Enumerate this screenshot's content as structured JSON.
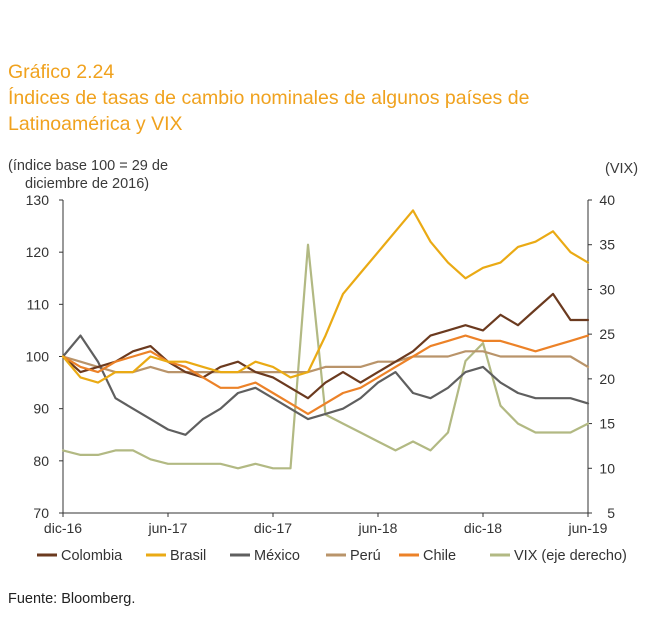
{
  "header": {
    "chart_number": "Gráfico 2.24",
    "title_line1": "Índices de tasas de cambio nominales de algunos países de",
    "title_line2": "Latinoamérica y VIX"
  },
  "units": {
    "left_line1": "(índice base 100 = 29 de",
    "left_line2": "diciembre de 2016)",
    "right": "(VIX)"
  },
  "source": "Fuente: Bloomberg.",
  "chart_data": {
    "type": "line",
    "x_ticks": [
      "dic-16",
      "jun-17",
      "dic-17",
      "jun-18",
      "dic-18",
      "jun-19"
    ],
    "left_axis": {
      "ticks": [
        70,
        80,
        90,
        100,
        110,
        120,
        130
      ],
      "ylim": [
        70,
        130
      ]
    },
    "right_axis": {
      "ticks": [
        5,
        10,
        15,
        20,
        25,
        30,
        35,
        40
      ],
      "ylim": [
        5,
        40
      ]
    },
    "x_range_months": [
      0,
      30
    ],
    "grid": false,
    "legend_position": "bottom",
    "series": [
      {
        "name": "Colombia",
        "color": "#6b3a1f",
        "axis": "left",
        "x": [
          0,
          1,
          2,
          3,
          4,
          5,
          6,
          7,
          8,
          9,
          10,
          11,
          12,
          13,
          14,
          15,
          16,
          17,
          18,
          19,
          20,
          21,
          22,
          23,
          24,
          25,
          26,
          27,
          28,
          29,
          30
        ],
        "values": [
          100,
          97,
          98,
          99,
          101,
          102,
          99,
          97,
          96,
          98,
          99,
          97,
          96,
          94,
          92,
          95,
          97,
          95,
          97,
          99,
          101,
          104,
          105,
          106,
          105,
          108,
          106,
          109,
          112,
          107,
          107
        ]
      },
      {
        "name": "Brasil",
        "color": "#eaaa14",
        "axis": "left",
        "x": [
          0,
          1,
          2,
          3,
          4,
          5,
          6,
          7,
          8,
          9,
          10,
          11,
          12,
          13,
          14,
          15,
          16,
          17,
          18,
          19,
          20,
          21,
          22,
          23,
          24,
          25,
          26,
          27,
          28,
          29,
          30
        ],
        "values": [
          100,
          96,
          95,
          97,
          97,
          100,
          99,
          99,
          98,
          97,
          97,
          99,
          98,
          96,
          97,
          104,
          112,
          116,
          120,
          124,
          128,
          122,
          118,
          115,
          117,
          118,
          121,
          122,
          124,
          120,
          118
        ]
      },
      {
        "name": "México",
        "color": "#5f5f5f",
        "axis": "left",
        "x": [
          0,
          1,
          2,
          3,
          4,
          5,
          6,
          7,
          8,
          9,
          10,
          11,
          12,
          13,
          14,
          15,
          16,
          17,
          18,
          19,
          20,
          21,
          22,
          23,
          24,
          25,
          26,
          27,
          28,
          29,
          30
        ],
        "values": [
          100,
          104,
          99,
          92,
          90,
          88,
          86,
          85,
          88,
          90,
          93,
          94,
          92,
          90,
          88,
          89,
          90,
          92,
          95,
          97,
          93,
          92,
          94,
          97,
          98,
          95,
          93,
          92,
          92,
          92,
          91
        ]
      },
      {
        "name": "Perú",
        "color": "#b9946a",
        "axis": "left",
        "x": [
          0,
          1,
          2,
          3,
          4,
          5,
          6,
          7,
          8,
          9,
          10,
          11,
          12,
          13,
          14,
          15,
          16,
          17,
          18,
          19,
          20,
          21,
          22,
          23,
          24,
          25,
          26,
          27,
          28,
          29,
          30
        ],
        "values": [
          100,
          99,
          98,
          97,
          97,
          98,
          97,
          97,
          97,
          97,
          97,
          97,
          97,
          97,
          97,
          98,
          98,
          98,
          99,
          99,
          100,
          100,
          100,
          101,
          101,
          100,
          100,
          100,
          100,
          100,
          98
        ]
      },
      {
        "name": "Chile",
        "color": "#ec8228",
        "axis": "left",
        "x": [
          0,
          1,
          2,
          3,
          4,
          5,
          6,
          7,
          8,
          9,
          10,
          11,
          12,
          13,
          14,
          15,
          16,
          17,
          18,
          19,
          20,
          21,
          22,
          23,
          24,
          25,
          26,
          27,
          28,
          29,
          30
        ],
        "values": [
          100,
          98,
          97,
          99,
          100,
          101,
          99,
          98,
          96,
          94,
          94,
          95,
          93,
          91,
          89,
          91,
          93,
          94,
          96,
          98,
          100,
          102,
          103,
          104,
          103,
          103,
          102,
          101,
          102,
          103,
          104
        ]
      },
      {
        "name": "VIX (eje derecho)",
        "color": "#b2b983",
        "axis": "right",
        "x": [
          0,
          1,
          2,
          3,
          4,
          5,
          6,
          7,
          8,
          9,
          10,
          11,
          12,
          13,
          14,
          15,
          16,
          17,
          18,
          19,
          20,
          21,
          22,
          23,
          24,
          25,
          26,
          27,
          28,
          29,
          30
        ],
        "values": [
          12,
          11.5,
          11.5,
          12,
          12,
          11,
          10.5,
          10.5,
          10.5,
          10.5,
          10,
          10.5,
          10,
          10,
          35,
          16,
          15,
          14,
          13,
          12,
          13,
          12,
          14,
          22,
          24,
          17,
          15,
          14,
          14,
          14,
          15
        ]
      }
    ]
  }
}
